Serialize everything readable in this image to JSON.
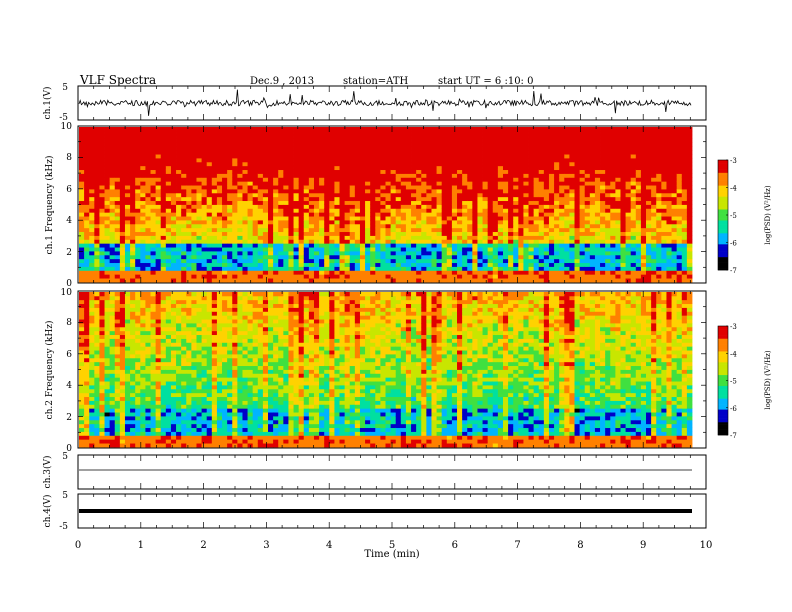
{
  "header": {
    "title": "VLF Spectra",
    "date": "Dec.9 , 2013",
    "station": "station=ATH",
    "start": "start UT = 6 :10: 0"
  },
  "colorbar": {
    "label": "log(PSD) (V²/Hz)",
    "ticks": [
      "-3",
      "-4",
      "-5",
      "-6",
      "-7"
    ],
    "range": [
      -7,
      -3
    ],
    "colors": [
      "#000000",
      "#0000c8",
      "#00b4ff",
      "#00e0a0",
      "#40e040",
      "#c8e600",
      "#ffd200",
      "#ff8000",
      "#e00000",
      "#ffffff"
    ]
  },
  "chart_data": [
    {
      "type": "line",
      "panel": "ch.1",
      "ylabel": "ch.1(V)",
      "ylim": [
        -5,
        5
      ],
      "yticks": [
        "5",
        "-5"
      ],
      "series": [
        {
          "name": "ch.1",
          "mean": 0,
          "amplitude_typical": 1.0,
          "spikes": true
        }
      ]
    },
    {
      "type": "heatmap",
      "panel": "ch.1",
      "ylabel": "ch.1 Frequency (kHz)",
      "ylim": [
        0,
        10
      ],
      "yticks": [
        "0",
        "2",
        "4",
        "6",
        "8",
        "10"
      ],
      "xlim": [
        0,
        9.8
      ],
      "z_range": [
        -7,
        -3
      ]
    },
    {
      "type": "heatmap",
      "panel": "ch.2",
      "ylabel": "ch.2 Frequency (kHz)",
      "ylim": [
        0,
        10
      ],
      "yticks": [
        "0",
        "2",
        "4",
        "6",
        "8",
        "10"
      ],
      "xlim": [
        0,
        9.8
      ],
      "z_range": [
        -7,
        -3
      ]
    },
    {
      "type": "line",
      "panel": "ch.3",
      "ylabel": "ch.3(V)",
      "ylim": [
        -5,
        5
      ],
      "yticks": [
        "5"
      ],
      "series": [
        {
          "name": "ch.3",
          "mean": -1,
          "amplitude_typical": 0.05
        }
      ]
    },
    {
      "type": "line",
      "panel": "ch.4",
      "ylabel": "ch.4(V)",
      "ylim": [
        -5,
        5
      ],
      "yticks": [
        "5",
        "-5"
      ],
      "series": [
        {
          "name": "ch.4",
          "mean": 0,
          "amplitude_typical": 0.1
        }
      ]
    }
  ],
  "xaxis": {
    "label": "Time (min)",
    "ticks": [
      "0",
      "1",
      "2",
      "3",
      "4",
      "5",
      "6",
      "7",
      "8",
      "9",
      "10"
    ],
    "range": [
      0,
      10
    ]
  }
}
